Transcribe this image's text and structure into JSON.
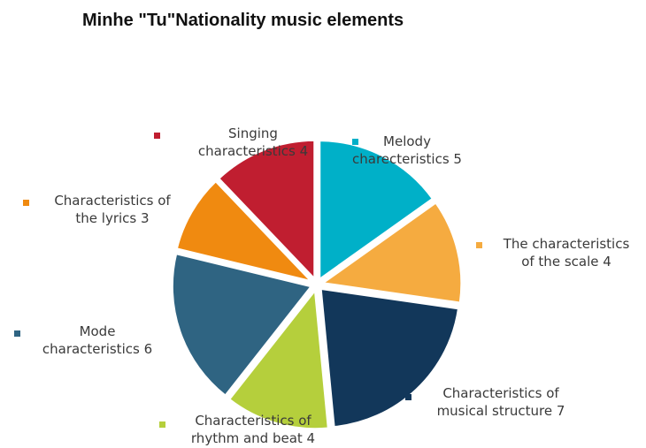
{
  "title": "Minhe \"Tu\"Nationality music elements",
  "chart_data": {
    "type": "pie",
    "title": "Minhe \"Tu\"Nationality music elements",
    "legend_placement": "around",
    "slices": [
      {
        "name": "Melody",
        "label_lines": [
          "Melody",
          "charecteristics 5"
        ],
        "value": 5,
        "color": "#00b0c8"
      },
      {
        "name": "The characteristics of the scale",
        "label_lines": [
          "The characteristics",
          "of the scale 4"
        ],
        "value": 4,
        "color": "#f5ab40"
      },
      {
        "name": "Characteristics of musical structure",
        "label_lines": [
          "Characteristics of",
          "musical structure 7"
        ],
        "value": 7,
        "color": "#12375a"
      },
      {
        "name": "Characteristics of rhythm and beat",
        "label_lines": [
          "Characteristics of",
          "rhythm and beat 4"
        ],
        "value": 4,
        "color": "#b5cf3c"
      },
      {
        "name": "Mode characteristics",
        "label_lines": [
          "Mode",
          "characteristics 6"
        ],
        "value": 6,
        "color": "#2f6482"
      },
      {
        "name": "Characteristics of the lyrics",
        "label_lines": [
          "Characteristics of",
          "the lyrics 3"
        ],
        "value": 3,
        "color": "#f08a10"
      },
      {
        "name": "Singing characteristics",
        "label_lines": [
          "Singing",
          "characteristics 4"
        ],
        "value": 4,
        "color": "#c01e30"
      }
    ]
  }
}
